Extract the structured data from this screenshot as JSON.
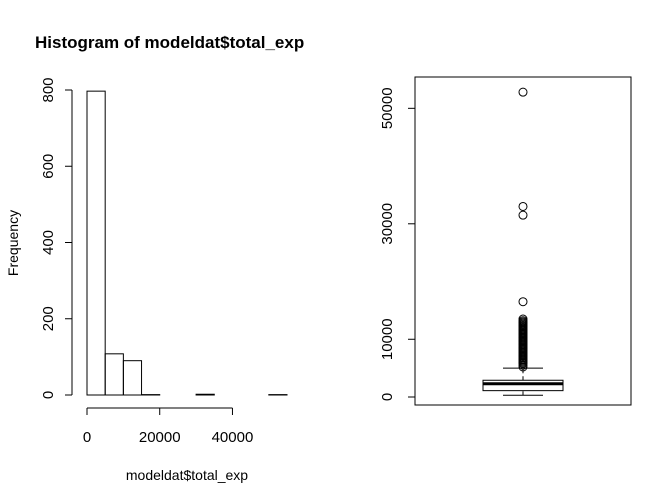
{
  "chart_data": [
    {
      "type": "bar",
      "title": "Histogram of modeldat$total_exp",
      "xlabel": "modeldat$total_exp",
      "ylabel": "Frequency",
      "bin_edges": [
        0,
        5000,
        10000,
        15000,
        20000,
        25000,
        30000,
        35000,
        40000,
        45000,
        50000,
        55000
      ],
      "values": [
        797,
        108,
        90,
        1,
        0,
        0,
        2,
        0,
        0,
        0,
        1
      ],
      "xlim": [
        0,
        55000
      ],
      "ylim": [
        0,
        800
      ],
      "x_ticks": [
        0,
        20000,
        40000
      ],
      "x_tick_labels": [
        "0",
        "20000",
        "40000"
      ],
      "y_ticks": [
        0,
        200,
        400,
        600,
        800
      ],
      "y_tick_labels": [
        "0",
        "200",
        "400",
        "600",
        "800"
      ],
      "grid": false
    },
    {
      "type": "boxplot",
      "title": "",
      "ylim": [
        0,
        55000
      ],
      "y_ticks": [
        0,
        10000,
        30000,
        50000
      ],
      "y_tick_labels": [
        "0",
        "10000",
        "30000",
        "50000"
      ],
      "box": {
        "whisker_low": 300,
        "q1": 1100,
        "median": 2300,
        "q3": 2900,
        "whisker_high": 5000
      },
      "outliers": [
        5200,
        5500,
        5800,
        6000,
        6200,
        6400,
        6600,
        6800,
        7000,
        7200,
        7400,
        7600,
        7800,
        8000,
        8200,
        8400,
        8600,
        8800,
        9000,
        9200,
        9400,
        9600,
        9800,
        10000,
        10200,
        10400,
        10600,
        10800,
        11000,
        11200,
        11400,
        11600,
        11800,
        12000,
        12200,
        12400,
        12600,
        12800,
        13000,
        13200,
        13500,
        16500,
        31500,
        33000,
        52800
      ],
      "grid": false
    }
  ]
}
